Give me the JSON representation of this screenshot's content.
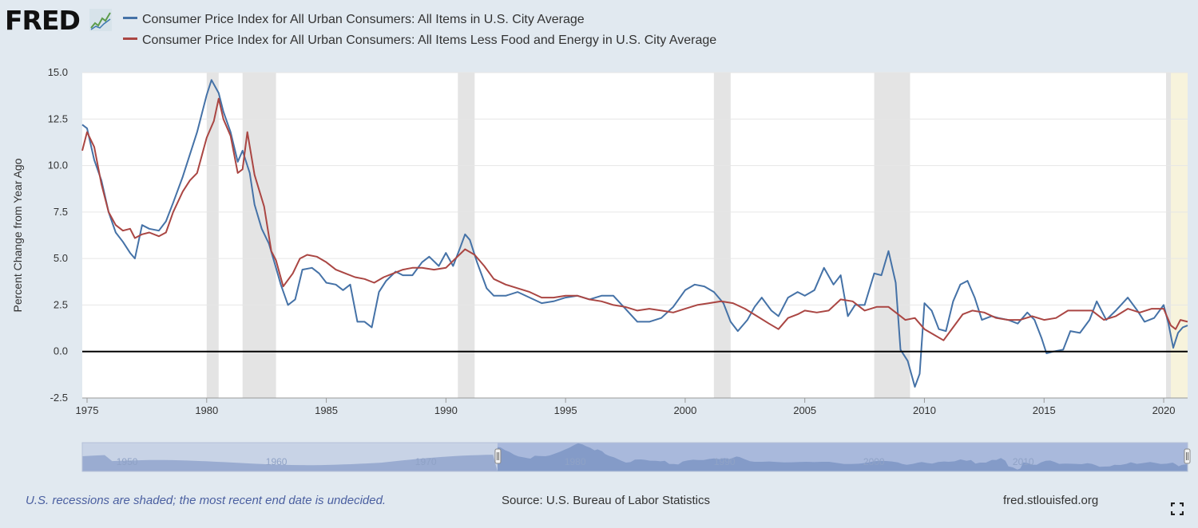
{
  "brand": {
    "logo_text": "FRED",
    "logo_icon": "line-chart-icon"
  },
  "footer": {
    "note": "U.S. recessions are shaded; the most recent end date is undecided.",
    "source": "Source: U.S. Bureau of Labor Statistics",
    "site": "fred.stlouisfed.org",
    "fullscreen_icon": "expand-icon"
  },
  "chart_data": {
    "type": "line",
    "title": "",
    "xlabel": "",
    "ylabel": "Percent Change from Year Ago",
    "xlim": [
      1974.8,
      2021.0
    ],
    "ylim": [
      -2.5,
      15.0
    ],
    "x_ticks": [
      1975,
      1980,
      1985,
      1990,
      1995,
      2000,
      2005,
      2010,
      2015,
      2020
    ],
    "y_ticks": [
      -2.5,
      0.0,
      2.5,
      5.0,
      7.5,
      10.0,
      12.5,
      15.0
    ],
    "y_tick_labels": [
      "-2.5",
      "0.0",
      "2.5",
      "5.0",
      "7.5",
      "10.0",
      "12.5",
      "15.0"
    ],
    "grid": true,
    "legend_position": "top",
    "zero_line": true,
    "recessions": [
      [
        1980.0,
        1980.5
      ],
      [
        1981.5,
        1982.9
      ],
      [
        1990.5,
        1991.2
      ],
      [
        2001.2,
        2001.9
      ],
      [
        2007.9,
        2009.4
      ],
      [
        2020.1,
        2020.3
      ]
    ],
    "undecided_shade": [
      2020.1,
      2021.0
    ],
    "series": [
      {
        "name": "Consumer Price Index for All Urban Consumers: All Items in U.S. City Average",
        "color": "#4572a7",
        "points": [
          [
            1974.8,
            12.2
          ],
          [
            1975.0,
            12.0
          ],
          [
            1975.3,
            10.3
          ],
          [
            1975.6,
            9.2
          ],
          [
            1975.9,
            7.5
          ],
          [
            1976.2,
            6.4
          ],
          [
            1976.5,
            5.9
          ],
          [
            1976.8,
            5.3
          ],
          [
            1977.0,
            5.0
          ],
          [
            1977.3,
            6.8
          ],
          [
            1977.6,
            6.6
          ],
          [
            1978.0,
            6.5
          ],
          [
            1978.3,
            7.0
          ],
          [
            1978.6,
            8.0
          ],
          [
            1979.0,
            9.4
          ],
          [
            1979.3,
            10.6
          ],
          [
            1979.6,
            11.8
          ],
          [
            1980.0,
            13.8
          ],
          [
            1980.2,
            14.6
          ],
          [
            1980.5,
            13.9
          ],
          [
            1980.7,
            12.9
          ],
          [
            1981.0,
            11.8
          ],
          [
            1981.3,
            10.2
          ],
          [
            1981.5,
            10.8
          ],
          [
            1981.8,
            9.6
          ],
          [
            1982.0,
            7.9
          ],
          [
            1982.3,
            6.6
          ],
          [
            1982.6,
            5.8
          ],
          [
            1982.9,
            4.5
          ],
          [
            1983.1,
            3.6
          ],
          [
            1983.4,
            2.5
          ],
          [
            1983.7,
            2.8
          ],
          [
            1984.0,
            4.4
          ],
          [
            1984.4,
            4.5
          ],
          [
            1984.7,
            4.2
          ],
          [
            1985.0,
            3.7
          ],
          [
            1985.4,
            3.6
          ],
          [
            1985.7,
            3.3
          ],
          [
            1986.0,
            3.6
          ],
          [
            1986.3,
            1.6
          ],
          [
            1986.6,
            1.6
          ],
          [
            1986.9,
            1.3
          ],
          [
            1987.2,
            3.2
          ],
          [
            1987.5,
            3.8
          ],
          [
            1987.9,
            4.3
          ],
          [
            1988.2,
            4.1
          ],
          [
            1988.6,
            4.1
          ],
          [
            1989.0,
            4.8
          ],
          [
            1989.3,
            5.1
          ],
          [
            1989.7,
            4.6
          ],
          [
            1990.0,
            5.3
          ],
          [
            1990.3,
            4.6
          ],
          [
            1990.6,
            5.6
          ],
          [
            1990.8,
            6.3
          ],
          [
            1991.0,
            6.0
          ],
          [
            1991.3,
            4.8
          ],
          [
            1991.7,
            3.4
          ],
          [
            1992.0,
            3.0
          ],
          [
            1992.5,
            3.0
          ],
          [
            1993.0,
            3.2
          ],
          [
            1993.5,
            2.9
          ],
          [
            1994.0,
            2.6
          ],
          [
            1994.5,
            2.7
          ],
          [
            1995.0,
            2.9
          ],
          [
            1995.5,
            3.0
          ],
          [
            1996.0,
            2.8
          ],
          [
            1996.5,
            3.0
          ],
          [
            1997.0,
            3.0
          ],
          [
            1997.5,
            2.3
          ],
          [
            1998.0,
            1.6
          ],
          [
            1998.5,
            1.6
          ],
          [
            1999.0,
            1.8
          ],
          [
            1999.5,
            2.4
          ],
          [
            2000.0,
            3.3
          ],
          [
            2000.4,
            3.6
          ],
          [
            2000.8,
            3.5
          ],
          [
            2001.2,
            3.2
          ],
          [
            2001.6,
            2.6
          ],
          [
            2001.9,
            1.6
          ],
          [
            2002.2,
            1.1
          ],
          [
            2002.6,
            1.7
          ],
          [
            2002.9,
            2.4
          ],
          [
            2003.2,
            2.9
          ],
          [
            2003.6,
            2.2
          ],
          [
            2003.9,
            1.9
          ],
          [
            2004.3,
            2.9
          ],
          [
            2004.7,
            3.2
          ],
          [
            2005.0,
            3.0
          ],
          [
            2005.4,
            3.3
          ],
          [
            2005.8,
            4.5
          ],
          [
            2006.2,
            3.6
          ],
          [
            2006.5,
            4.1
          ],
          [
            2006.8,
            1.9
          ],
          [
            2007.1,
            2.5
          ],
          [
            2007.5,
            2.5
          ],
          [
            2007.9,
            4.2
          ],
          [
            2008.2,
            4.1
          ],
          [
            2008.5,
            5.4
          ],
          [
            2008.8,
            3.7
          ],
          [
            2009.0,
            0.1
          ],
          [
            2009.3,
            -0.5
          ],
          [
            2009.6,
            -1.9
          ],
          [
            2009.8,
            -1.2
          ],
          [
            2010.0,
            2.6
          ],
          [
            2010.3,
            2.2
          ],
          [
            2010.6,
            1.2
          ],
          [
            2010.9,
            1.1
          ],
          [
            2011.2,
            2.7
          ],
          [
            2011.5,
            3.6
          ],
          [
            2011.8,
            3.8
          ],
          [
            2012.1,
            2.9
          ],
          [
            2012.4,
            1.7
          ],
          [
            2012.8,
            1.9
          ],
          [
            2013.1,
            1.8
          ],
          [
            2013.5,
            1.7
          ],
          [
            2013.9,
            1.5
          ],
          [
            2014.3,
            2.1
          ],
          [
            2014.6,
            1.7
          ],
          [
            2014.9,
            0.7
          ],
          [
            2015.1,
            -0.1
          ],
          [
            2015.4,
            0.0
          ],
          [
            2015.8,
            0.1
          ],
          [
            2016.1,
            1.1
          ],
          [
            2016.5,
            1.0
          ],
          [
            2016.9,
            1.7
          ],
          [
            2017.2,
            2.7
          ],
          [
            2017.6,
            1.7
          ],
          [
            2018.0,
            2.2
          ],
          [
            2018.5,
            2.9
          ],
          [
            2018.9,
            2.2
          ],
          [
            2019.2,
            1.6
          ],
          [
            2019.6,
            1.8
          ],
          [
            2020.0,
            2.5
          ],
          [
            2020.2,
            1.5
          ],
          [
            2020.4,
            0.2
          ],
          [
            2020.6,
            1.0
          ],
          [
            2020.8,
            1.3
          ],
          [
            2021.0,
            1.4
          ]
        ]
      },
      {
        "name": "Consumer Price Index for All Urban Consumers: All Items Less Food and Energy in U.S. City Average",
        "color": "#aa4643",
        "points": [
          [
            1974.8,
            10.8
          ],
          [
            1975.0,
            11.8
          ],
          [
            1975.3,
            11.0
          ],
          [
            1975.6,
            9.0
          ],
          [
            1975.9,
            7.5
          ],
          [
            1976.2,
            6.8
          ],
          [
            1976.5,
            6.5
          ],
          [
            1976.8,
            6.6
          ],
          [
            1977.0,
            6.1
          ],
          [
            1977.3,
            6.3
          ],
          [
            1977.6,
            6.4
          ],
          [
            1978.0,
            6.2
          ],
          [
            1978.3,
            6.4
          ],
          [
            1978.6,
            7.5
          ],
          [
            1979.0,
            8.6
          ],
          [
            1979.3,
            9.2
          ],
          [
            1979.6,
            9.6
          ],
          [
            1980.0,
            11.5
          ],
          [
            1980.3,
            12.4
          ],
          [
            1980.5,
            13.6
          ],
          [
            1980.7,
            12.5
          ],
          [
            1981.0,
            11.6
          ],
          [
            1981.3,
            9.6
          ],
          [
            1981.5,
            9.8
          ],
          [
            1981.7,
            11.8
          ],
          [
            1982.0,
            9.5
          ],
          [
            1982.4,
            7.8
          ],
          [
            1982.7,
            5.4
          ],
          [
            1982.9,
            4.9
          ],
          [
            1983.2,
            3.5
          ],
          [
            1983.6,
            4.2
          ],
          [
            1983.9,
            5.0
          ],
          [
            1984.2,
            5.2
          ],
          [
            1984.6,
            5.1
          ],
          [
            1985.0,
            4.8
          ],
          [
            1985.4,
            4.4
          ],
          [
            1985.8,
            4.2
          ],
          [
            1986.2,
            4.0
          ],
          [
            1986.6,
            3.9
          ],
          [
            1987.0,
            3.7
          ],
          [
            1987.4,
            4.0
          ],
          [
            1987.8,
            4.2
          ],
          [
            1988.2,
            4.4
          ],
          [
            1988.6,
            4.5
          ],
          [
            1989.0,
            4.5
          ],
          [
            1989.5,
            4.4
          ],
          [
            1990.0,
            4.5
          ],
          [
            1990.4,
            5.0
          ],
          [
            1990.8,
            5.5
          ],
          [
            1991.2,
            5.2
          ],
          [
            1991.6,
            4.6
          ],
          [
            1992.0,
            3.9
          ],
          [
            1992.5,
            3.6
          ],
          [
            1993.0,
            3.4
          ],
          [
            1993.5,
            3.2
          ],
          [
            1994.0,
            2.9
          ],
          [
            1994.5,
            2.9
          ],
          [
            1995.0,
            3.0
          ],
          [
            1995.5,
            3.0
          ],
          [
            1996.0,
            2.8
          ],
          [
            1996.5,
            2.7
          ],
          [
            1997.0,
            2.5
          ],
          [
            1997.5,
            2.4
          ],
          [
            1998.0,
            2.2
          ],
          [
            1998.5,
            2.3
          ],
          [
            1999.0,
            2.2
          ],
          [
            1999.5,
            2.1
          ],
          [
            2000.0,
            2.3
          ],
          [
            2000.5,
            2.5
          ],
          [
            2001.0,
            2.6
          ],
          [
            2001.5,
            2.7
          ],
          [
            2002.0,
            2.6
          ],
          [
            2002.5,
            2.3
          ],
          [
            2003.0,
            1.9
          ],
          [
            2003.5,
            1.5
          ],
          [
            2003.9,
            1.2
          ],
          [
            2004.3,
            1.8
          ],
          [
            2004.7,
            2.0
          ],
          [
            2005.0,
            2.2
          ],
          [
            2005.5,
            2.1
          ],
          [
            2006.0,
            2.2
          ],
          [
            2006.5,
            2.8
          ],
          [
            2007.0,
            2.7
          ],
          [
            2007.5,
            2.2
          ],
          [
            2008.0,
            2.4
          ],
          [
            2008.5,
            2.4
          ],
          [
            2008.9,
            2.0
          ],
          [
            2009.2,
            1.7
          ],
          [
            2009.6,
            1.8
          ],
          [
            2010.0,
            1.2
          ],
          [
            2010.4,
            0.9
          ],
          [
            2010.8,
            0.6
          ],
          [
            2011.2,
            1.3
          ],
          [
            2011.6,
            2.0
          ],
          [
            2012.0,
            2.2
          ],
          [
            2012.5,
            2.1
          ],
          [
            2013.0,
            1.8
          ],
          [
            2013.5,
            1.7
          ],
          [
            2014.0,
            1.7
          ],
          [
            2014.5,
            1.9
          ],
          [
            2015.0,
            1.7
          ],
          [
            2015.5,
            1.8
          ],
          [
            2016.0,
            2.2
          ],
          [
            2016.5,
            2.2
          ],
          [
            2017.0,
            2.2
          ],
          [
            2017.5,
            1.7
          ],
          [
            2018.0,
            1.9
          ],
          [
            2018.5,
            2.3
          ],
          [
            2019.0,
            2.1
          ],
          [
            2019.5,
            2.3
          ],
          [
            2020.0,
            2.3
          ],
          [
            2020.3,
            1.4
          ],
          [
            2020.5,
            1.2
          ],
          [
            2020.7,
            1.7
          ],
          [
            2021.0,
            1.6
          ]
        ]
      }
    ]
  },
  "navigator": {
    "x_labels": [
      "1950",
      "1960",
      "1970",
      "1980",
      "1990",
      "2000",
      "2010"
    ]
  }
}
